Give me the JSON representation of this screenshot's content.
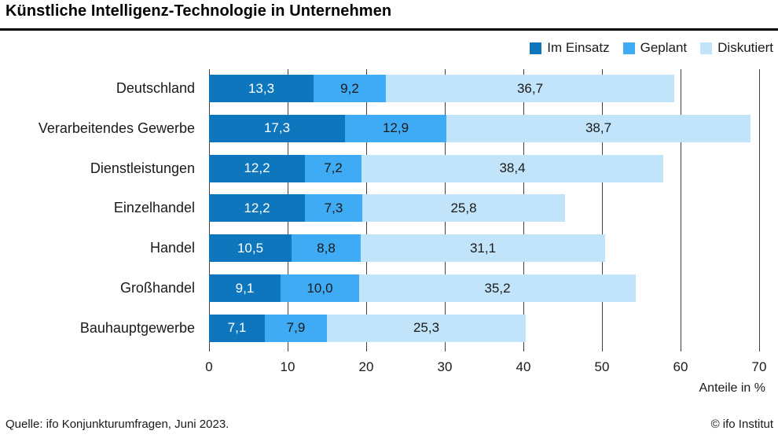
{
  "title": "Künstliche Intelligenz-Technologie in Unternehmen",
  "footer": {
    "source": "Quelle: ifo Konjunkturumfragen, Juni 2023.",
    "copyright": "© ifo Institut"
  },
  "chart_data": {
    "type": "bar",
    "subtype": "horizontal-stacked",
    "title": "Künstliche Intelligenz-Technologie in Unternehmen",
    "categories": [
      "Deutschland",
      "Verarbeitendes Gewerbe",
      "Dienstleistungen",
      "Einzelhandel",
      "Handel",
      "Großhandel",
      "Bauhauptgewerbe"
    ],
    "series": [
      {
        "name": "Im Einsatz",
        "color": "#0d76bd",
        "text_color": "#ffffff",
        "values": [
          13.3,
          17.3,
          12.2,
          12.2,
          10.5,
          9.1,
          7.1
        ]
      },
      {
        "name": "Geplant",
        "color": "#3fabf5",
        "text_color": "#1a1a1a",
        "values": [
          9.2,
          12.9,
          7.2,
          7.3,
          8.8,
          10.0,
          7.9
        ]
      },
      {
        "name": "Diskutiert",
        "color": "#c1e4fb",
        "text_color": "#1a1a1a",
        "values": [
          36.7,
          38.7,
          38.4,
          25.8,
          31.1,
          35.2,
          25.3
        ]
      }
    ],
    "xlabel": "Anteile in %",
    "ylabel": "",
    "xlim": [
      0,
      70
    ],
    "xticks": [
      0,
      10,
      20,
      30,
      40,
      50,
      60,
      70
    ],
    "grid": "vertical",
    "gridline_color": "#404040",
    "legend_position": "top-right",
    "value_label_decimal": "comma"
  }
}
